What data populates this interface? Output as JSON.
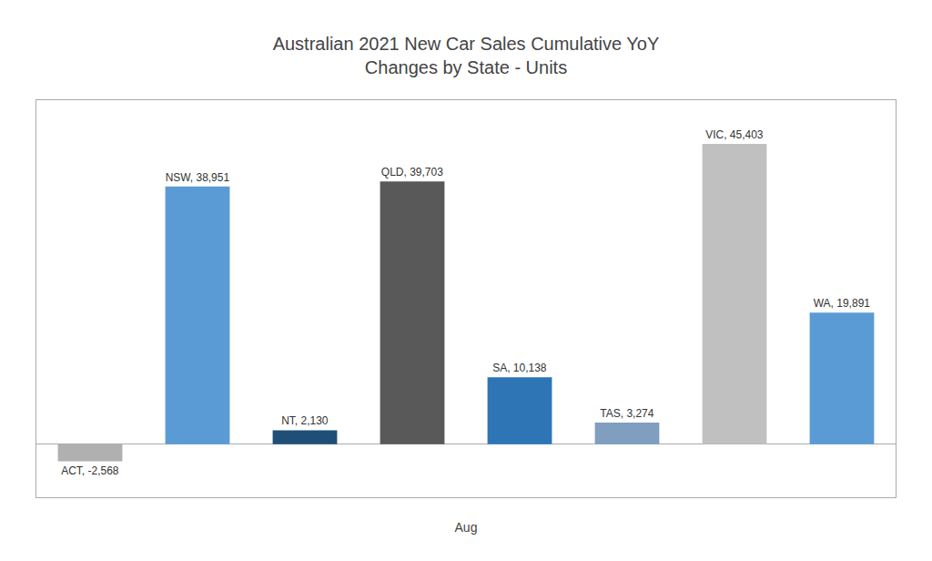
{
  "chart_data": {
    "type": "bar",
    "title": "Australian 2021 New Car Sales Cumulative YoY\nChanges by State - Units",
    "xlabel": "Aug",
    "categories": [
      "ACT",
      "NSW",
      "NT",
      "QLD",
      "SA",
      "TAS",
      "VIC",
      "WA"
    ],
    "values": [
      -2568,
      38951,
      2130,
      39703,
      10138,
      3274,
      45403,
      19891
    ],
    "value_labels": [
      "ACT, -2,568",
      "NSW, 38,951",
      "NT, 2,130",
      "QLD, 39,703",
      "SA, 10,138",
      "TAS, 3,274",
      "VIC, 45,403",
      "WA, 19,891"
    ],
    "colors": [
      "#b0b0b0",
      "#5b9bd5",
      "#1f4e79",
      "#595959",
      "#2e75b6",
      "#7f9ec0",
      "#c0c0c0",
      "#5b9bd5"
    ],
    "data_labels": true,
    "ylim": [
      -8000,
      52000
    ],
    "tick_labels": false,
    "grid": false
  }
}
